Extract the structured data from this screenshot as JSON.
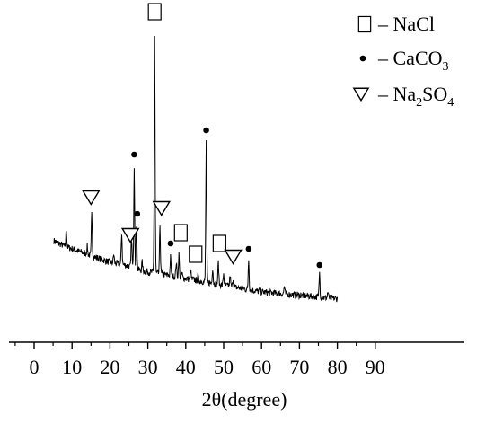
{
  "chart_data": {
    "type": "line",
    "title": "",
    "xlabel": "2θ(degree)",
    "ylabel": "",
    "xlim": [
      -5,
      90
    ],
    "xticks": [
      0,
      10,
      20,
      30,
      40,
      50,
      60,
      70,
      80,
      90
    ],
    "xtick_labels": [
      "0",
      "10",
      "20",
      "30",
      "40",
      "50",
      "60",
      "70",
      "80",
      "90"
    ],
    "y_axis_shown": false,
    "grid": false,
    "legend_position": "top-right",
    "legend": [
      {
        "symbol": "open-square",
        "dash": "–",
        "text": "NaCl"
      },
      {
        "symbol": "filled-circle",
        "dash": "–",
        "text": "CaCO",
        "sub": "3",
        "tail": ""
      },
      {
        "symbol": "open-triangle-down",
        "dash": "–",
        "text": "Na",
        "sub": "2",
        "tail": "SO",
        "sub2": "4"
      }
    ],
    "series": [
      {
        "baseline": [
          [
            5.2,
            0.24
          ],
          [
            8,
            0.22
          ],
          [
            12,
            0.2
          ],
          [
            16,
            0.18
          ],
          [
            20,
            0.16
          ],
          [
            24,
            0.15
          ],
          [
            28,
            0.13
          ],
          [
            32,
            0.12
          ],
          [
            36,
            0.11
          ],
          [
            40,
            0.1
          ],
          [
            44,
            0.09
          ],
          [
            48,
            0.08
          ],
          [
            52,
            0.07
          ],
          [
            56,
            0.06
          ],
          [
            60,
            0.05
          ],
          [
            64,
            0.045
          ],
          [
            68,
            0.04
          ],
          [
            72,
            0.035
          ],
          [
            76,
            0.03
          ],
          [
            80,
            0.025
          ]
        ],
        "peaks": [
          [
            8.5,
            0.28
          ],
          [
            14,
            0.22
          ],
          [
            15.2,
            0.34
          ],
          [
            21,
            0.19
          ],
          [
            23.1,
            0.27
          ],
          [
            25.7,
            0.25
          ],
          [
            26.4,
            0.52
          ],
          [
            27.0,
            0.3
          ],
          [
            28.5,
            0.16
          ],
          [
            31.8,
            1.0
          ],
          [
            33.2,
            0.3
          ],
          [
            36.0,
            0.18
          ],
          [
            37.5,
            0.16
          ],
          [
            38.2,
            0.19
          ],
          [
            39.0,
            0.12
          ],
          [
            41.3,
            0.13
          ],
          [
            43.2,
            0.11
          ],
          [
            45.4,
            0.61
          ],
          [
            47.1,
            0.14
          ],
          [
            48.6,
            0.16
          ],
          [
            50.0,
            0.12
          ],
          [
            51.7,
            0.11
          ],
          [
            52.5,
            0.1
          ],
          [
            56.6,
            0.17
          ],
          [
            59.6,
            0.06
          ],
          [
            66.0,
            0.07
          ],
          [
            75.3,
            0.12
          ],
          [
            77.5,
            0.05
          ]
        ]
      }
    ],
    "markers": [
      {
        "symbol": "open-square",
        "x": 31.8,
        "y": 1.09
      },
      {
        "symbol": "open-square",
        "x": 38.7,
        "y": 0.27
      },
      {
        "symbol": "open-square",
        "x": 42.6,
        "y": 0.19
      },
      {
        "symbol": "open-square",
        "x": 48.9,
        "y": 0.23
      },
      {
        "symbol": "filled-circle",
        "x": 26.4,
        "y": 0.56
      },
      {
        "symbol": "filled-circle",
        "x": 27.2,
        "y": 0.34
      },
      {
        "symbol": "filled-circle",
        "x": 36.0,
        "y": 0.23
      },
      {
        "symbol": "filled-circle",
        "x": 45.4,
        "y": 0.65
      },
      {
        "symbol": "filled-circle",
        "x": 56.6,
        "y": 0.21
      },
      {
        "symbol": "filled-circle",
        "x": 75.3,
        "y": 0.15
      },
      {
        "symbol": "open-triangle-down",
        "x": 15.0,
        "y": 0.4
      },
      {
        "symbol": "open-triangle-down",
        "x": 25.4,
        "y": 0.26
      },
      {
        "symbol": "open-triangle-down",
        "x": 33.6,
        "y": 0.36
      },
      {
        "symbol": "open-triangle-down",
        "x": 52.5,
        "y": 0.18
      }
    ]
  }
}
